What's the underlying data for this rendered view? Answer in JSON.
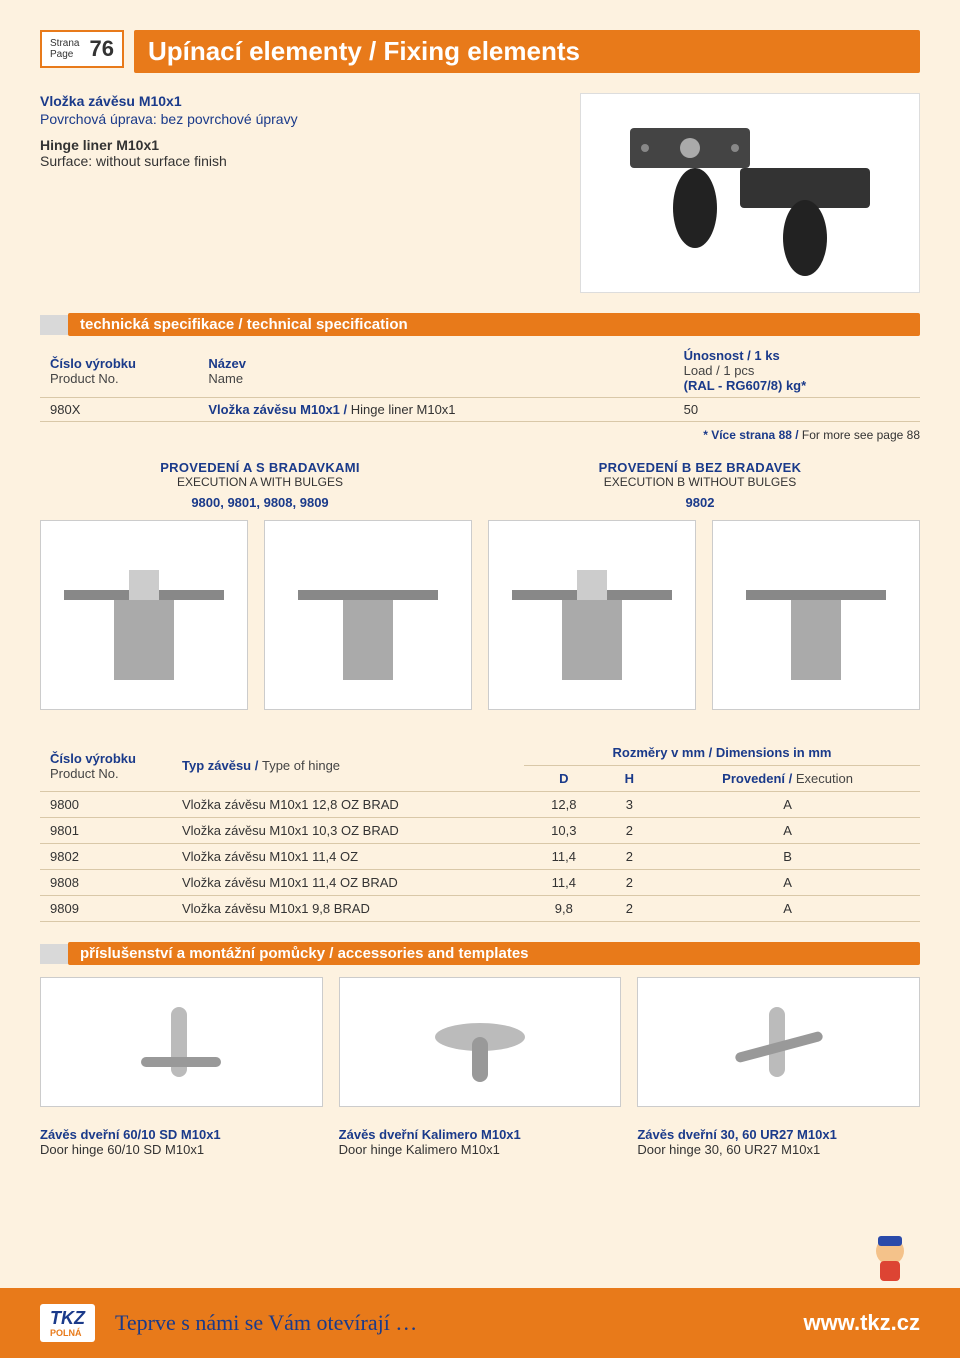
{
  "page_label": {
    "strana": "Strana",
    "page": "Page",
    "number": "76"
  },
  "title": "Upínací elementy / Fixing elements",
  "intro": {
    "line1": "Vložka závěsu M10x1",
    "line2": "Povrchová úprava: bez povrchové úpravy",
    "line3": "Hinge liner M10x1",
    "line4": "Surface: without surface finish"
  },
  "section_spec": "technická specifikace / technical specification",
  "spec_table": {
    "headers": {
      "col1a": "Číslo výrobku",
      "col1b": "Product No.",
      "col2a": "Název",
      "col2b": "Name",
      "col3a": "Únosnost / 1 ks",
      "col3b": "Load / 1 pcs",
      "col3c": "(RAL - RG607/8) kg*"
    },
    "row": {
      "code": "980X",
      "name_cs": "Vložka závěsu M10x1 /",
      "name_en": "Hinge liner M10x1",
      "load": "50"
    }
  },
  "footnote": {
    "bold": "* Více strana 88 /",
    "rest": " For more see page 88"
  },
  "executions": {
    "a": {
      "h1": "PROVEDENÍ A S BRADAVKAMI",
      "h2": "EXECUTION A WITH BULGES",
      "codes": "9800, 9801, 9808, 9809"
    },
    "b": {
      "h1": "PROVEDENÍ B BEZ BRADAVEK",
      "h2": "EXECUTION B WITHOUT BULGES",
      "codes": "9802"
    }
  },
  "dims_table": {
    "headers": {
      "col1a": "Číslo výrobku",
      "col1b": "Product No.",
      "col2a": "Typ závěsu /",
      "col2b": "Type of hinge",
      "col34": "Rozměry v mm / Dimensions in mm",
      "sub_d": "D",
      "sub_h": "H",
      "sub_exec_a": "Provedení /",
      "sub_exec_b": "Execution"
    },
    "rows": [
      {
        "code": "9800",
        "type": "Vložka závěsu M10x1 12,8 OZ BRAD",
        "D": "12,8",
        "H": "3",
        "exec": "A"
      },
      {
        "code": "9801",
        "type": "Vložka závěsu M10x1 10,3 OZ BRAD",
        "D": "10,3",
        "H": "2",
        "exec": "A"
      },
      {
        "code": "9802",
        "type": "Vložka závěsu M10x1 11,4 OZ",
        "D": "11,4",
        "H": "2",
        "exec": "B"
      },
      {
        "code": "9808",
        "type": "Vložka závěsu M10x1 11,4 OZ BRAD",
        "D": "11,4",
        "H": "2",
        "exec": "A"
      },
      {
        "code": "9809",
        "type": "Vložka závěsu M10x1 9,8 BRAD",
        "D": "9,8",
        "H": "2",
        "exec": "A"
      }
    ]
  },
  "section_acc": "příslušenství a montážní pomůcky / accessories and templates",
  "accessories": [
    {
      "b": "Závěs dveřní 60/10 SD M10x1",
      "s": "Door hinge 60/10 SD M10x1"
    },
    {
      "b": "Závěs dveřní Kalimero M10x1",
      "s": "Door hinge Kalimero M10x1"
    },
    {
      "b": "Závěs dveřní 30, 60 UR27 M10x1",
      "s": "Door hinge 30, 60 UR27 M10x1"
    }
  ],
  "footer": {
    "logo_main": "TKZ",
    "logo_sub": "POLNÁ",
    "slogan": "Teprve s námi se Vám otevírají …",
    "url": "www.tkz.cz"
  },
  "colors": {
    "orange": "#e87a1a",
    "cream": "#fdf2e0",
    "navy": "#1a3a8a",
    "grey_sq": "#d9d9d9",
    "row_border": "#d9c8a8"
  }
}
